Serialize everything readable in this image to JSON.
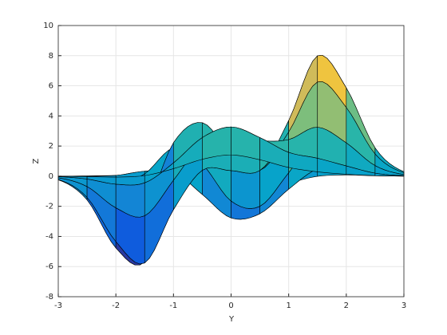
{
  "chart_data": {
    "type": "surface",
    "xlabel": "Y",
    "ylabel": "Z",
    "depth": [
      -2,
      -1.5,
      -1,
      -0.5,
      0,
      0.5,
      1,
      1.5,
      2
    ],
    "x": [
      -3,
      -2.5,
      -2,
      -1.5,
      -1,
      -0.5,
      0,
      0.5,
      1,
      1.5,
      2,
      2.5,
      3
    ],
    "z": [
      [
        0.0,
        0.02,
        0.05,
        0.08,
        -0.13,
        -0.8,
        -1.33,
        -1.12,
        -0.48,
        -0.01,
        0.08,
        0.03,
        0.0
      ],
      [
        0.0,
        0.0,
        0.05,
        0.33,
        0.3,
        -1.21,
        -2.77,
        -2.49,
        -0.86,
        0.48,
        0.55,
        0.19,
        0.03
      ],
      [
        -0.03,
        -0.23,
        -0.59,
        0.15,
        1.86,
        0.8,
        -1.65,
        -2.0,
        0.23,
        2.61,
        2.1,
        0.69,
        0.11
      ],
      [
        -0.14,
        -0.91,
        -2.63,
        -2.19,
        2.22,
        3.55,
        1.48,
        0.39,
        2.79,
        6.2,
        4.55,
        1.47,
        0.23
      ],
      [
        -0.24,
        -1.57,
        -4.76,
        -5.68,
        -0.72,
        2.0,
        0.98,
        0.46,
        3.69,
        7.99,
        5.86,
        1.88,
        0.3
      ],
      [
        -0.22,
        -1.41,
        -4.34,
        -5.76,
        -2.22,
        0.39,
        0.37,
        0.38,
        2.93,
        6.25,
        4.56,
        1.47,
        0.23
      ],
      [
        -0.11,
        -0.69,
        -2.1,
        -2.63,
        -0.27,
        2.2,
        2.94,
        2.38,
        2.43,
        3.25,
        2.21,
        0.7,
        0.11
      ],
      [
        -0.03,
        -0.19,
        -0.53,
        -0.44,
        0.88,
        2.56,
        3.27,
        2.56,
        1.58,
        1.19,
        0.68,
        0.2,
        0.03
      ],
      [
        -0.01,
        -0.03,
        -0.06,
        0.04,
        0.5,
        1.12,
        1.41,
        1.09,
        0.58,
        0.29,
        0.13,
        0.04,
        0.01
      ]
    ],
    "xlim": [
      -3,
      3
    ],
    "xticks": [
      -3,
      -2,
      -1,
      0,
      1,
      2,
      3
    ],
    "ylim": [
      -8,
      10
    ],
    "yticks": [
      -8,
      -6,
      -4,
      -2,
      0,
      2,
      4,
      6,
      8,
      10
    ],
    "grid": true,
    "colormap": "parula",
    "edgecolor": "#000000"
  }
}
